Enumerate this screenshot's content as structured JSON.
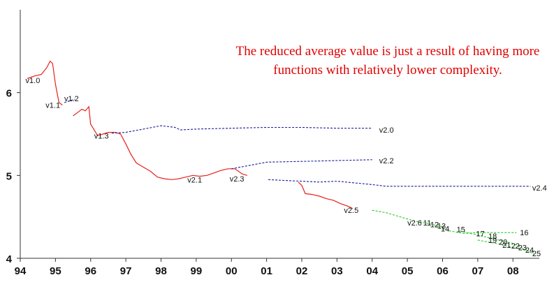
{
  "chart_data": {
    "type": "line",
    "title": "",
    "xlabel": "",
    "ylabel": "",
    "xlim": [
      1994,
      2008.75
    ],
    "ylim": [
      4,
      7
    ],
    "grid": false,
    "x_tick_labels": [
      "94",
      "95",
      "96",
      "97",
      "98",
      "99",
      "00",
      "01",
      "02",
      "03",
      "04",
      "05",
      "06",
      "07",
      "08"
    ],
    "x_tick_values": [
      1994,
      1995,
      1996,
      1997,
      1998,
      1999,
      2000,
      2001,
      2002,
      2003,
      2004,
      2005,
      2006,
      2007,
      2008
    ],
    "y_tick_labels": [
      "4",
      "5",
      "6"
    ],
    "y_tick_values": [
      4,
      5,
      6
    ],
    "annotation": "The reduced average value is just a result of having more functions with relatively lower complexity.",
    "colors": {
      "red": "#e8201a",
      "blue": "#1a1a9c",
      "green": "#22cc22",
      "annotation": "#e00000"
    },
    "series": [
      {
        "color": "red",
        "dash": false,
        "points": [
          [
            1994.2,
            6.17
          ],
          [
            1994.4,
            6.2
          ],
          [
            1994.6,
            6.22
          ],
          [
            1994.75,
            6.3
          ],
          [
            1994.85,
            6.38
          ],
          [
            1994.92,
            6.35
          ],
          [
            1995.0,
            6.1
          ],
          [
            1995.1,
            5.88
          ],
          [
            1995.2,
            5.85
          ]
        ]
      },
      {
        "color": "red",
        "dash": false,
        "points": [
          [
            1995.5,
            5.72
          ],
          [
            1995.6,
            5.75
          ],
          [
            1995.75,
            5.8
          ],
          [
            1995.85,
            5.78
          ],
          [
            1995.95,
            5.83
          ],
          [
            1996.0,
            5.62
          ],
          [
            1996.1,
            5.55
          ],
          [
            1996.2,
            5.48
          ],
          [
            1996.35,
            5.5
          ],
          [
            1996.5,
            5.52
          ],
          [
            1996.7,
            5.52
          ],
          [
            1996.85,
            5.5
          ],
          [
            1997.0,
            5.38
          ],
          [
            1997.15,
            5.25
          ],
          [
            1997.3,
            5.15
          ],
          [
            1997.5,
            5.1
          ],
          [
            1997.7,
            5.05
          ],
          [
            1997.9,
            4.98
          ],
          [
            1998.1,
            4.96
          ],
          [
            1998.3,
            4.95
          ],
          [
            1998.5,
            4.96
          ],
          [
            1998.7,
            4.98
          ],
          [
            1998.9,
            5.0
          ],
          [
            1999.1,
            4.99
          ],
          [
            1999.3,
            5.0
          ],
          [
            1999.5,
            5.03
          ],
          [
            1999.7,
            5.06
          ],
          [
            1999.9,
            5.08
          ],
          [
            2000.1,
            5.08
          ],
          [
            2000.3,
            5.02
          ],
          [
            2000.45,
            5.0
          ]
        ]
      },
      {
        "color": "red",
        "dash": false,
        "points": [
          [
            2001.9,
            4.92
          ],
          [
            2002.0,
            4.88
          ],
          [
            2002.1,
            4.78
          ],
          [
            2002.3,
            4.77
          ],
          [
            2002.5,
            4.75
          ],
          [
            2002.7,
            4.72
          ],
          [
            2002.9,
            4.7
          ],
          [
            2003.1,
            4.66
          ],
          [
            2003.3,
            4.63
          ],
          [
            2003.45,
            4.6
          ]
        ]
      },
      {
        "color": "blue",
        "dash": true,
        "points": [
          [
            1995.25,
            5.88
          ],
          [
            1995.55,
            5.92
          ]
        ]
      },
      {
        "color": "blue",
        "dash": true,
        "points": [
          [
            1996.6,
            5.51
          ],
          [
            1997.0,
            5.52
          ],
          [
            1997.5,
            5.56
          ],
          [
            1998.0,
            5.6
          ],
          [
            1998.4,
            5.58
          ],
          [
            1998.55,
            5.55
          ],
          [
            1999.0,
            5.56
          ],
          [
            2000.0,
            5.57
          ],
          [
            2001.0,
            5.58
          ],
          [
            2002.0,
            5.58
          ],
          [
            2003.0,
            5.57
          ],
          [
            2004.0,
            5.57
          ]
        ]
      },
      {
        "color": "blue",
        "dash": true,
        "points": [
          [
            2000.0,
            5.08
          ],
          [
            2000.5,
            5.12
          ],
          [
            2001.0,
            5.16
          ],
          [
            2002.0,
            5.17
          ],
          [
            2003.0,
            5.18
          ],
          [
            2004.0,
            5.19
          ]
        ]
      },
      {
        "color": "blue",
        "dash": true,
        "points": [
          [
            2001.05,
            4.95
          ],
          [
            2001.5,
            4.94
          ],
          [
            2002.0,
            4.93
          ],
          [
            2002.5,
            4.92
          ],
          [
            2003.0,
            4.93
          ],
          [
            2003.5,
            4.91
          ],
          [
            2004.0,
            4.89
          ],
          [
            2004.4,
            4.87
          ],
          [
            2005.0,
            4.87
          ],
          [
            2006.0,
            4.87
          ],
          [
            2007.0,
            4.87
          ],
          [
            2008.0,
            4.87
          ],
          [
            2008.5,
            4.87
          ]
        ]
      },
      {
        "color": "green",
        "dash": true,
        "points": [
          [
            2004.0,
            4.58
          ],
          [
            2004.4,
            4.55
          ],
          [
            2004.8,
            4.5
          ],
          [
            2005.2,
            4.45
          ],
          [
            2005.6,
            4.42
          ],
          [
            2006.0,
            4.38
          ]
        ]
      },
      {
        "color": "green",
        "dash": true,
        "points": [
          [
            2005.8,
            4.38
          ],
          [
            2006.2,
            4.33
          ],
          [
            2006.6,
            4.3
          ],
          [
            2007.0,
            4.31
          ],
          [
            2007.4,
            4.31
          ],
          [
            2007.8,
            4.31
          ],
          [
            2008.1,
            4.31
          ]
        ]
      },
      {
        "color": "green",
        "dash": true,
        "points": [
          [
            2006.5,
            4.33
          ],
          [
            2007.0,
            4.28
          ],
          [
            2007.5,
            4.23
          ],
          [
            2008.0,
            4.18
          ],
          [
            2008.6,
            4.05
          ]
        ]
      },
      {
        "color": "green",
        "dash": true,
        "points": [
          [
            2007.0,
            4.22
          ],
          [
            2007.5,
            4.18
          ],
          [
            2008.0,
            4.13
          ],
          [
            2008.4,
            4.1
          ]
        ]
      }
    ],
    "labels": [
      {
        "text": "v1.0",
        "x": 1994.15,
        "y": 6.15
      },
      {
        "text": "v1.1",
        "x": 1994.72,
        "y": 5.85
      },
      {
        "text": "v1.2",
        "x": 1995.25,
        "y": 5.93
      },
      {
        "text": "v1.3",
        "x": 1996.1,
        "y": 5.48
      },
      {
        "text": "v2.0",
        "x": 2004.2,
        "y": 5.55
      },
      {
        "text": "v2.2",
        "x": 2004.2,
        "y": 5.18
      },
      {
        "text": "v2.1",
        "x": 1998.75,
        "y": 4.95
      },
      {
        "text": "v2.3",
        "x": 1999.95,
        "y": 4.96
      },
      {
        "text": "v2.4",
        "x": 2008.55,
        "y": 4.85
      },
      {
        "text": "v2.5",
        "x": 2003.2,
        "y": 4.58
      },
      {
        "text": "v2.6",
        "x": 2005.0,
        "y": 4.43
      },
      {
        "text": "11",
        "x": 2005.45,
        "y": 4.43
      },
      {
        "text": "12",
        "x": 2005.65,
        "y": 4.41
      },
      {
        "text": "13",
        "x": 2005.85,
        "y": 4.39
      },
      {
        "text": "14",
        "x": 2005.95,
        "y": 4.36
      },
      {
        "text": "15",
        "x": 2006.4,
        "y": 4.35
      },
      {
        "text": "16",
        "x": 2008.2,
        "y": 4.31
      },
      {
        "text": "17",
        "x": 2006.95,
        "y": 4.3
      },
      {
        "text": "18",
        "x": 2007.3,
        "y": 4.27
      },
      {
        "text": "19",
        "x": 2007.3,
        "y": 4.22
      },
      {
        "text": "20",
        "x": 2007.6,
        "y": 4.2
      },
      {
        "text": "21",
        "x": 2007.7,
        "y": 4.16
      },
      {
        "text": "22",
        "x": 2007.95,
        "y": 4.15
      },
      {
        "text": "23",
        "x": 2008.15,
        "y": 4.13
      },
      {
        "text": "24",
        "x": 2008.35,
        "y": 4.1
      },
      {
        "text": "25",
        "x": 2008.55,
        "y": 4.06
      }
    ]
  }
}
